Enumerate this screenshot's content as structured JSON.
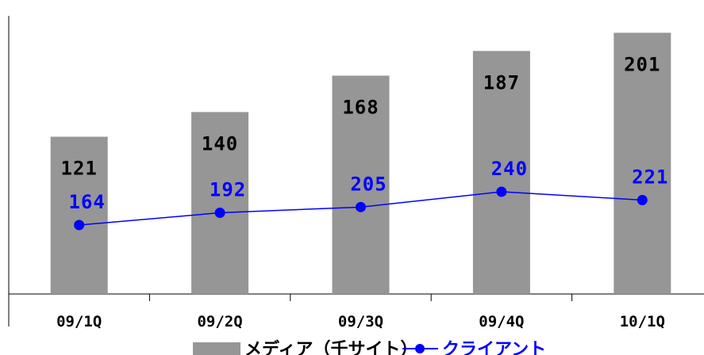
{
  "chart_data": {
    "type": "bar",
    "categories": [
      "09/1Q",
      "09/2Q",
      "09/3Q",
      "09/4Q",
      "10/1Q"
    ],
    "series": [
      {
        "name": "メディア（千サイト）",
        "type": "bar",
        "values": [
          121,
          140,
          168,
          187,
          201
        ],
        "color": "#969696"
      },
      {
        "name": "クライアント",
        "type": "line",
        "values": [
          164,
          192,
          205,
          240,
          221
        ],
        "color": "#0000ff"
      }
    ],
    "legend_position": "bottom-left",
    "grid": false
  }
}
